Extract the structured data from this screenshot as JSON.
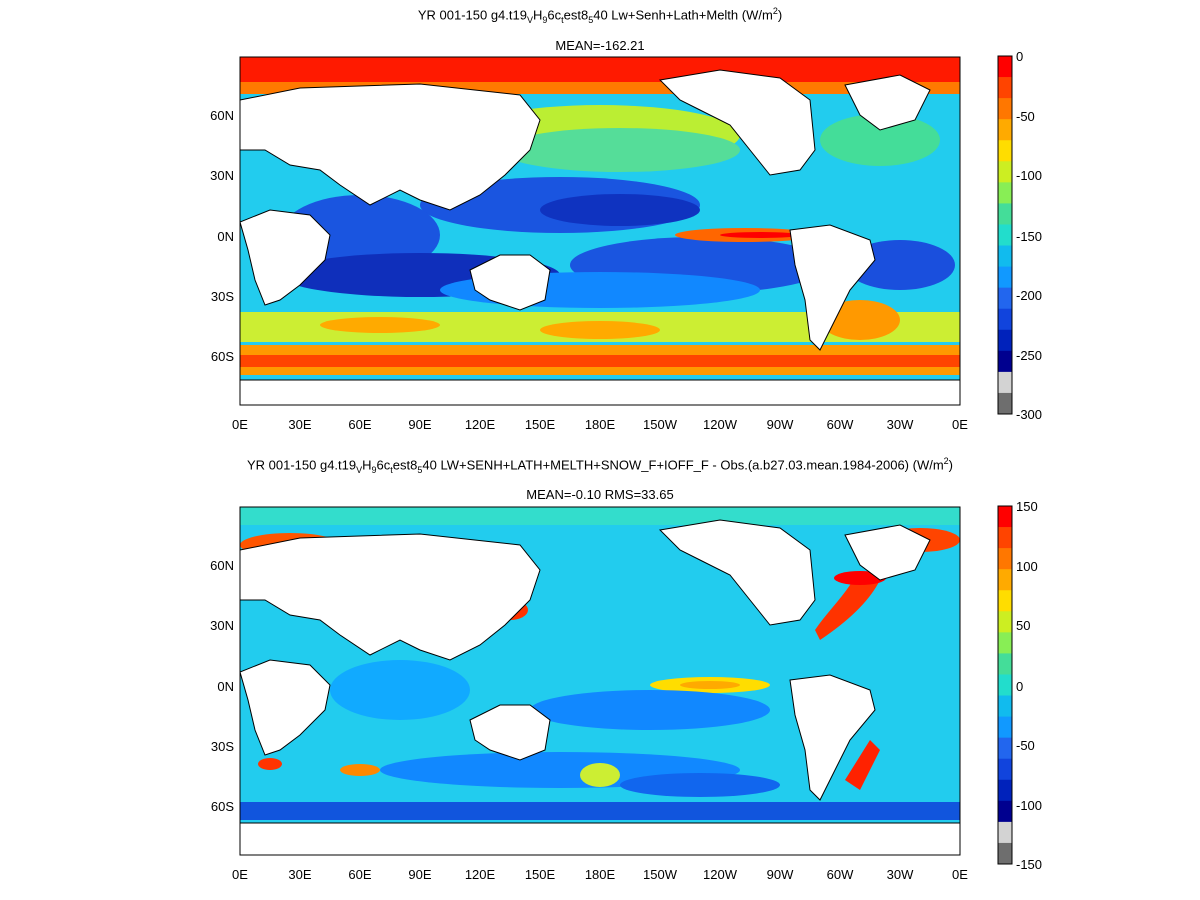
{
  "panels": [
    {
      "title_parts": {
        "p1": "YR 001-150 g4.t19",
        "s1": "V",
        "p2": "H",
        "s2": "9",
        "p3": "6c",
        "s3": "t",
        "p4": "est8",
        "s4": "5",
        "p5": "40 Lw+Senh+Lath+Melth (W/m",
        "sup": "2",
        "p6": ")"
      },
      "stats": "MEAN=-162.21",
      "lat_labels": [
        "60N",
        "30N",
        "0N",
        "30S",
        "60S"
      ],
      "lon_labels": [
        "0E",
        "30E",
        "60E",
        "90E",
        "120E",
        "150E",
        "180E",
        "150W",
        "120W",
        "90W",
        "60W",
        "30W",
        "0E"
      ],
      "colorbar_labels": [
        "0",
        "-50",
        "-100",
        "-150",
        "-200",
        "-250",
        "-300"
      ],
      "colorbar_colors": [
        "#ff0000",
        "#ff4400",
        "#ff7700",
        "#ffaa00",
        "#ffdd00",
        "#ccee22",
        "#88ee55",
        "#44dd99",
        "#22ddcc",
        "#11bbee",
        "#1199ff",
        "#2266ee",
        "#1144dd",
        "#0022bb",
        "#00008f",
        "#d3d3d3",
        "#6e6e6e"
      ]
    },
    {
      "title_parts": {
        "p1": "YR 001-150 g4.t19",
        "s1": "V",
        "p2": "H",
        "s2": "9",
        "p3": "6c",
        "s3": "t",
        "p4": "est8",
        "s4": "5",
        "p5": "40 LW+SENH+LATH+MELTH+SNOW_F+IOFF_F - Obs.(a.b27.03.mean.1984-2006) (W/m",
        "sup": "2",
        "p6": ")"
      },
      "stats": "MEAN=-0.10 RMS=33.65",
      "lat_labels": [
        "60N",
        "30N",
        "0N",
        "30S",
        "60S"
      ],
      "lon_labels": [
        "0E",
        "30E",
        "60E",
        "90E",
        "120E",
        "150E",
        "180E",
        "150W",
        "120W",
        "90W",
        "60W",
        "30W",
        "0E"
      ],
      "colorbar_labels": [
        "150",
        "100",
        "50",
        "0",
        "-50",
        "-100",
        "-150"
      ],
      "colorbar_colors": [
        "#ff0000",
        "#ff4400",
        "#ff7700",
        "#ffaa00",
        "#ffdd00",
        "#ccee22",
        "#88ee55",
        "#44dd99",
        "#22ddcc",
        "#11bbee",
        "#1199ff",
        "#2266ee",
        "#1144dd",
        "#0022bb",
        "#00008f",
        "#d3d3d3",
        "#6e6e6e"
      ]
    }
  ]
}
